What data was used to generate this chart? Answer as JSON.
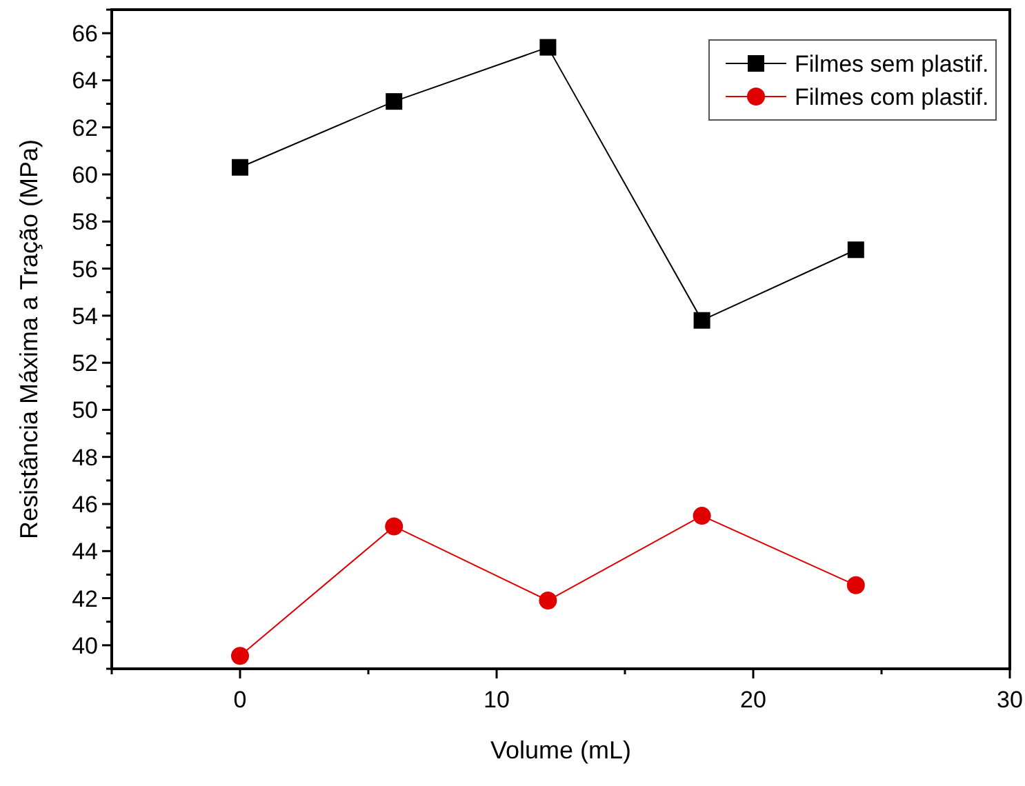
{
  "chart_data": {
    "type": "line",
    "xlabel": "Volume (mL)",
    "ylabel": "Resistância Máxima a Tração (MPa)",
    "x": [
      0,
      6,
      12,
      18,
      24
    ],
    "series": [
      {
        "name": "Filmes sem plastif.",
        "color": "#000000",
        "marker": "square",
        "values": [
          60.3,
          63.1,
          65.4,
          53.8,
          56.8
        ]
      },
      {
        "name": "Filmes com plastif.",
        "color": "#e00000",
        "marker": "circle",
        "values": [
          39.55,
          45.05,
          41.9,
          45.5,
          42.55
        ]
      }
    ],
    "xlim": [
      -5,
      30
    ],
    "xticks": [
      {
        "value": -5,
        "label": null
      },
      0,
      {
        "value": 5,
        "label": null
      },
      10,
      {
        "value": 15,
        "label": null
      },
      20,
      {
        "value": 25,
        "label": null
      },
      30
    ],
    "ylim": [
      39,
      67
    ],
    "yticks": [
      {
        "value": 39,
        "label": null
      },
      40,
      {
        "value": 41,
        "label": null
      },
      42,
      {
        "value": 43,
        "label": null
      },
      44,
      {
        "value": 45,
        "label": null
      },
      46,
      {
        "value": 47,
        "label": null
      },
      48,
      {
        "value": 49,
        "label": null
      },
      50,
      {
        "value": 51,
        "label": null
      },
      52,
      {
        "value": 53,
        "label": null
      },
      54,
      {
        "value": 55,
        "label": null
      },
      56,
      {
        "value": 57,
        "label": null
      },
      58,
      {
        "value": 59,
        "label": null
      },
      60,
      {
        "value": 61,
        "label": null
      },
      62,
      {
        "value": 63,
        "label": null
      },
      64,
      {
        "value": 65,
        "label": null
      },
      66,
      {
        "value": 67,
        "label": null
      }
    ],
    "legend": "top right",
    "line_style": "solid"
  }
}
